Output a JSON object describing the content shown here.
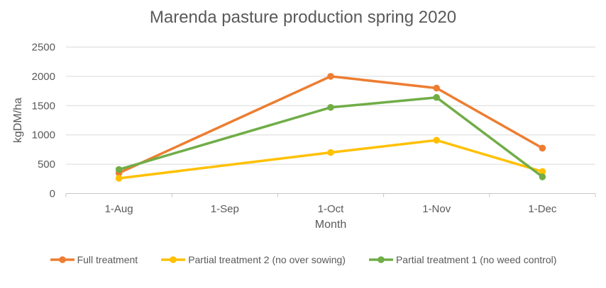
{
  "chart_data": {
    "type": "line",
    "title": "Marenda pasture production spring 2020",
    "xlabel": "Month",
    "ylabel": "kgDM/ha",
    "categories": [
      "1-Aug",
      "1-Sep",
      "1-Oct",
      "1-Nov",
      "1-Dec"
    ],
    "series": [
      {
        "name": "Full treatment",
        "color": "#ED7D31",
        "values": [
          350,
          null,
          2000,
          1800,
          775
        ]
      },
      {
        "name": "Partial treatment 2 (no over sowing)",
        "color": "#FFC000",
        "values": [
          260,
          null,
          700,
          910,
          375
        ]
      },
      {
        "name": "Partial treatment 1 (no weed control)",
        "color": "#70AD47",
        "values": [
          410,
          null,
          1470,
          1640,
          285
        ]
      }
    ],
    "ylim": [
      0,
      2500
    ],
    "yticks": [
      0,
      500,
      1000,
      1500,
      2000,
      2500
    ],
    "grid": true,
    "legend_position": "bottom",
    "marker": "circle"
  },
  "styles": {
    "text_color": "#595959",
    "gridline_color": "#D9D9D9",
    "axis_color": "#C6C6C6",
    "background": "#FFFFFF"
  }
}
